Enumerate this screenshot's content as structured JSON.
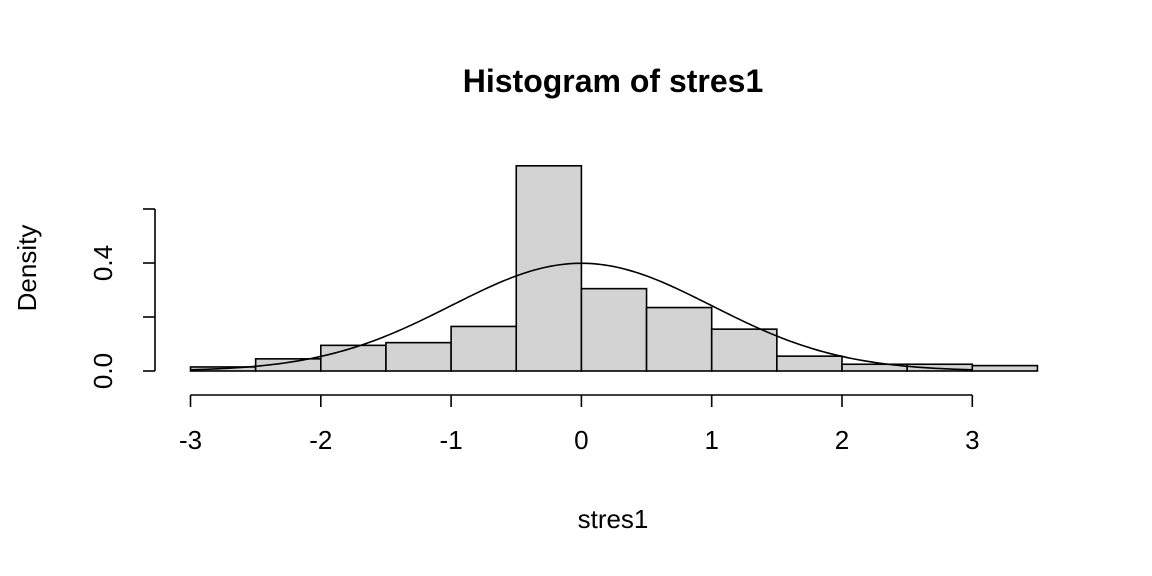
{
  "chart_data": {
    "type": "bar",
    "title": "Histogram of stres1",
    "xlabel": "stres1",
    "ylabel": "Density",
    "xlim": [
      -3,
      3.5
    ],
    "ylim": [
      0,
      0.76
    ],
    "x_ticks": [
      -3,
      -2,
      -1,
      0,
      1,
      2,
      3
    ],
    "x_tick_labels": [
      "-3",
      "-2",
      "-1",
      "0",
      "1",
      "2",
      "3"
    ],
    "y_ticks": [
      0,
      0.2,
      0.4,
      0.6
    ],
    "y_tick_labels": [
      "0.0",
      "",
      "0.4",
      ""
    ],
    "grid": false,
    "bins": [
      {
        "x0": -3.0,
        "x1": -2.5,
        "density": 0.015
      },
      {
        "x0": -2.5,
        "x1": -2.0,
        "density": 0.045
      },
      {
        "x0": -2.0,
        "x1": -1.5,
        "density": 0.095
      },
      {
        "x0": -1.5,
        "x1": -1.0,
        "density": 0.105
      },
      {
        "x0": -1.0,
        "x1": -0.5,
        "density": 0.165
      },
      {
        "x0": -0.5,
        "x1": 0.0,
        "density": 0.76
      },
      {
        "x0": 0.0,
        "x1": 0.5,
        "density": 0.305
      },
      {
        "x0": 0.5,
        "x1": 1.0,
        "density": 0.235
      },
      {
        "x0": 1.0,
        "x1": 1.5,
        "density": 0.155
      },
      {
        "x0": 1.5,
        "x1": 2.0,
        "density": 0.055
      },
      {
        "x0": 2.0,
        "x1": 2.5,
        "density": 0.025
      },
      {
        "x0": 2.5,
        "x1": 3.0,
        "density": 0.025
      },
      {
        "x0": 3.0,
        "x1": 3.5,
        "density": 0.02
      }
    ],
    "overlay": {
      "type": "normal-density",
      "mean": 0,
      "sd": 1,
      "x_range": [
        -3,
        3
      ]
    }
  }
}
